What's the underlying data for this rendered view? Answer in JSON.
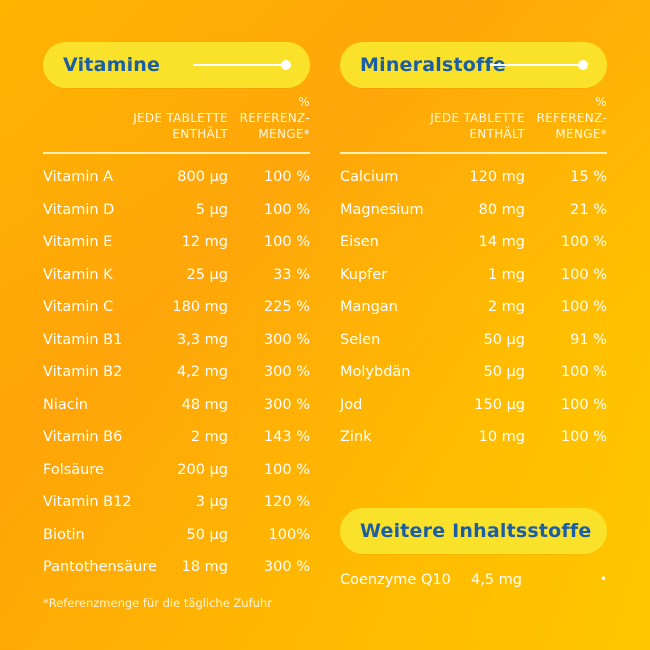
{
  "vitamins": {
    "title": "Vitamine",
    "header": {
      "pct": "%",
      "amount_line1": "JEDE TABLETTE",
      "amount_line2": "ENTHÄLT",
      "ref_line1": "REFERENZ-",
      "ref_line2": "MENGE*"
    },
    "rows": [
      {
        "name": "Vitamin A",
        "amount": "800 µg",
        "pct": "100 %"
      },
      {
        "name": "Vitamin D",
        "amount": "5 µg",
        "pct": "100 %"
      },
      {
        "name": "Vitamin E",
        "amount": "12 mg",
        "pct": "100 %"
      },
      {
        "name": "Vitamin K",
        "amount": "25 µg",
        "pct": "33 %"
      },
      {
        "name": "Vitamin C",
        "amount": "180 mg",
        "pct": "225 %"
      },
      {
        "name": "Vitamin B1",
        "amount": "3,3 mg",
        "pct": "300 %"
      },
      {
        "name": "Vitamin B2",
        "amount": "4,2 mg",
        "pct": "300 %"
      },
      {
        "name": "Niacin",
        "amount": "48 mg",
        "pct": "300 %"
      },
      {
        "name": "Vitamin B6",
        "amount": "2 mg",
        "pct": "143 %"
      },
      {
        "name": "Folsäure",
        "amount": "200 µg",
        "pct": "100 %"
      },
      {
        "name": "Vitamin B12",
        "amount": "3 µg",
        "pct": "120 %"
      },
      {
        "name": "Biotin",
        "amount": "50 µg",
        "pct": "100%"
      },
      {
        "name": "Pantothensäure",
        "amount": "18 mg",
        "pct": "300 %"
      }
    ]
  },
  "minerals": {
    "title": "Mineralstoffe",
    "header": {
      "pct": "%",
      "amount_line1": "JEDE TABLETTE",
      "amount_line2": "ENTHÄLT",
      "ref_line1": "REFERENZ-",
      "ref_line2": "MENGE*"
    },
    "rows": [
      {
        "name": "Calcium",
        "amount": "120 mg",
        "pct": "15 %"
      },
      {
        "name": "Magnesium",
        "amount": "80 mg",
        "pct": "21 %"
      },
      {
        "name": "Eisen",
        "amount": "14 mg",
        "pct": "100 %"
      },
      {
        "name": "Kupfer",
        "amount": "1 mg",
        "pct": "100 %"
      },
      {
        "name": "Mangan",
        "amount": "2 mg",
        "pct": "100 %"
      },
      {
        "name": "Selen",
        "amount": "50 µg",
        "pct": "91 %"
      },
      {
        "name": "Molybdän",
        "amount": "50 µg",
        "pct": "100 %"
      },
      {
        "name": "Jod",
        "amount": "150 µg",
        "pct": "100 %"
      },
      {
        "name": "Zink",
        "amount": "10 mg",
        "pct": "100 %"
      }
    ]
  },
  "others": {
    "title": "Weitere Inhaltsstoffe",
    "rows": [
      {
        "name": "Coenzyme Q10",
        "amount": "4,5 mg",
        "pct": "•"
      }
    ]
  },
  "footnote": "*Referenzmenge für die tägliche Zufuhr",
  "colors": {
    "pill_bg": "#fbe22a",
    "title_blue": "#1b5ea3",
    "bg_orange": "#ffb400"
  }
}
